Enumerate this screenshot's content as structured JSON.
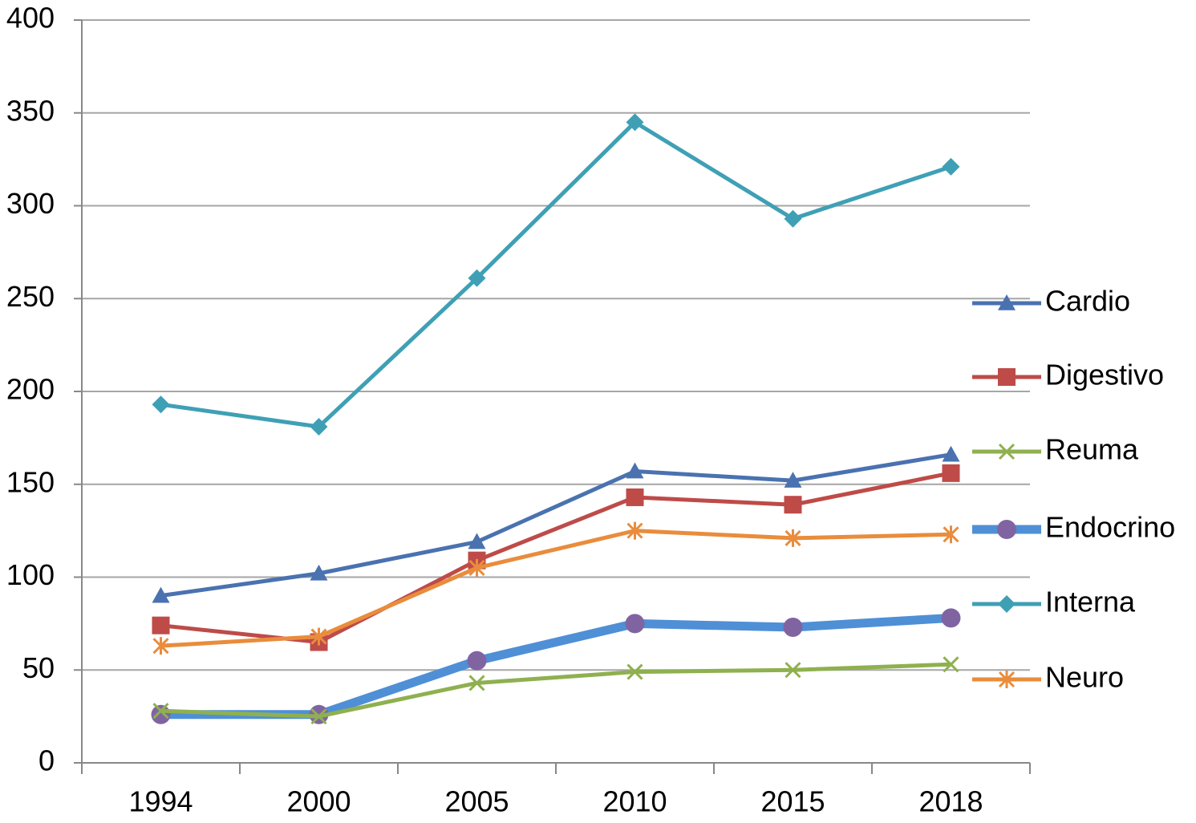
{
  "chart_data": {
    "type": "line",
    "categories": [
      "1994",
      "2000",
      "2005",
      "2010",
      "2015",
      "2018"
    ],
    "series": [
      {
        "name": "Cardio",
        "color": "#4a72b0",
        "marker": "triangle",
        "line_width": 5,
        "values": [
          90,
          102,
          119,
          157,
          152,
          166
        ]
      },
      {
        "name": "Digestivo",
        "color": "#be4b48",
        "marker": "square",
        "line_width": 5,
        "values": [
          74,
          65,
          109,
          143,
          139,
          156
        ]
      },
      {
        "name": "Reuma",
        "color": "#8fb04f",
        "marker": "x",
        "line_width": 5,
        "values": [
          28,
          25,
          43,
          49,
          50,
          53
        ]
      },
      {
        "name": "Endocrino",
        "color": "#4f8fd6",
        "marker": "circle",
        "line_width": 11,
        "values": [
          26,
          26,
          55,
          75,
          73,
          78
        ]
      },
      {
        "name": "Interna",
        "color": "#3fa0b5",
        "marker": "diamond",
        "line_width": 5,
        "values": [
          193,
          181,
          261,
          345,
          293,
          321
        ]
      },
      {
        "name": "Neuro",
        "color": "#e98c3c",
        "marker": "star",
        "line_width": 5,
        "values": [
          63,
          68,
          105,
          125,
          121,
          123
        ]
      }
    ],
    "ylim": [
      0,
      400
    ],
    "yticks": [
      0,
      50,
      100,
      150,
      200,
      250,
      300,
      350,
      400
    ],
    "grid": true,
    "legend": "right"
  }
}
